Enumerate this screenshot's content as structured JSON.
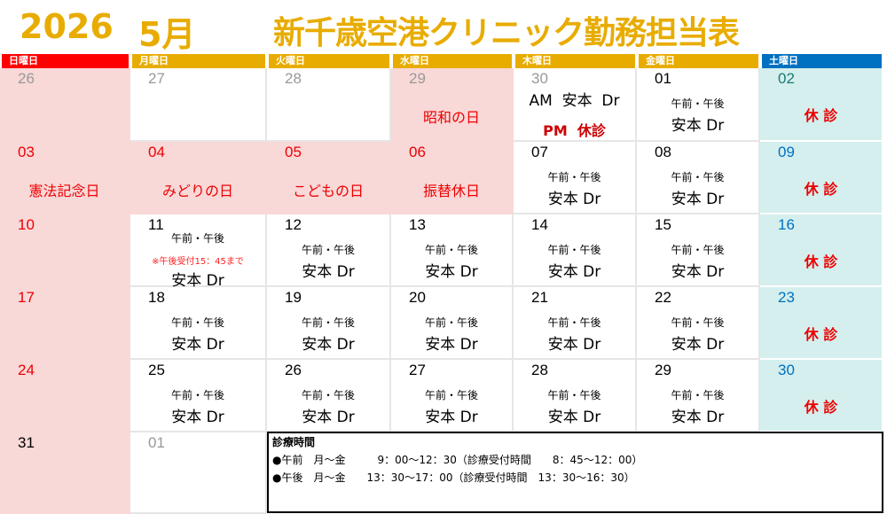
{
  "header": {
    "year": "2026",
    "month": "5月",
    "title": "新千歳空港クリニック勤務担当表"
  },
  "colors": {
    "gold": "#E8AC00",
    "sunday": "#FF0000",
    "saturday": "#0070C0",
    "holiday_bg": "#F9D8D8",
    "saturday_bg": "#D4EFEE",
    "holiday_text": "#EE0000"
  },
  "weekdays": [
    "日曜日",
    "月曜日",
    "火曜日",
    "水曜日",
    "木曜日",
    "金曜日",
    "土曜日"
  ],
  "weeks": [
    [
      {
        "day": "26",
        "dc": "gray",
        "bg": "pink"
      },
      {
        "day": "27",
        "dc": "gray"
      },
      {
        "day": "28",
        "dc": "gray"
      },
      {
        "day": "29",
        "dc": "gray",
        "bg": "pink",
        "holiday": "昭和の日"
      },
      {
        "day": "30",
        "dc": "gray",
        "am": "AM  安本  Dr",
        "pm": "PM  休診"
      },
      {
        "day": "01",
        "dc": "black",
        "sub": "午前・午後",
        "name": "安本 Dr"
      },
      {
        "day": "02",
        "dc": "teal",
        "bg": "teal",
        "closed": "休 診"
      }
    ],
    [
      {
        "day": "03",
        "dc": "red",
        "bg": "pink",
        "holiday": "憲法記念日"
      },
      {
        "day": "04",
        "dc": "red",
        "bg": "pink",
        "holiday": "みどりの日"
      },
      {
        "day": "05",
        "dc": "red",
        "bg": "pink",
        "holiday": "こどもの日"
      },
      {
        "day": "06",
        "dc": "red",
        "bg": "pink",
        "holiday": "振替休日"
      },
      {
        "day": "07",
        "dc": "black",
        "sub": "午前・午後",
        "name": "安本 Dr"
      },
      {
        "day": "08",
        "dc": "black",
        "sub": "午前・午後",
        "name": "安本 Dr"
      },
      {
        "day": "09",
        "dc": "blue",
        "bg": "teal",
        "closed": "休 診"
      }
    ],
    [
      {
        "day": "10",
        "dc": "red",
        "bg": "pink"
      },
      {
        "day": "11",
        "dc": "black",
        "sub": "午前・午後",
        "note": "※午後受付15：45まで",
        "name": "安本 Dr"
      },
      {
        "day": "12",
        "dc": "black",
        "sub": "午前・午後",
        "name": "安本 Dr"
      },
      {
        "day": "13",
        "dc": "black",
        "sub": "午前・午後",
        "name": "安本 Dr"
      },
      {
        "day": "14",
        "dc": "black",
        "sub": "午前・午後",
        "name": "安本 Dr"
      },
      {
        "day": "15",
        "dc": "black",
        "sub": "午前・午後",
        "name": "安本 Dr"
      },
      {
        "day": "16",
        "dc": "blue",
        "bg": "teal",
        "closed": "休 診"
      }
    ],
    [
      {
        "day": "17",
        "dc": "red",
        "bg": "pink"
      },
      {
        "day": "18",
        "dc": "black",
        "sub": "午前・午後",
        "name": "安本 Dr"
      },
      {
        "day": "19",
        "dc": "black",
        "sub": "午前・午後",
        "name": "安本 Dr"
      },
      {
        "day": "20",
        "dc": "black",
        "sub": "午前・午後",
        "name": "安本 Dr"
      },
      {
        "day": "21",
        "dc": "black",
        "sub": "午前・午後",
        "name": "安本 Dr"
      },
      {
        "day": "22",
        "dc": "black",
        "sub": "午前・午後",
        "name": "安本 Dr"
      },
      {
        "day": "23",
        "dc": "blue",
        "bg": "teal",
        "closed": "休 診"
      }
    ],
    [
      {
        "day": "24",
        "dc": "red",
        "bg": "pink"
      },
      {
        "day": "25",
        "dc": "black",
        "sub": "午前・午後",
        "name": "安本 Dr"
      },
      {
        "day": "26",
        "dc": "black",
        "sub": "午前・午後",
        "name": "安本 Dr"
      },
      {
        "day": "27",
        "dc": "black",
        "sub": "午前・午後",
        "name": "安本 Dr"
      },
      {
        "day": "28",
        "dc": "black",
        "sub": "午前・午後",
        "name": "安本 Dr"
      },
      {
        "day": "29",
        "dc": "black",
        "sub": "午前・午後",
        "name": "安本 Dr"
      },
      {
        "day": "30",
        "dc": "blue",
        "bg": "teal",
        "closed": "休 診"
      }
    ],
    [
      {
        "day": "31",
        "dc": "black",
        "bg": "pink"
      },
      {
        "day": "01",
        "dc": "gray"
      }
    ]
  ],
  "hours": {
    "title": "診療時間",
    "rows": [
      "●午前　月～金　　　9：00～12：30（診療受付時間　　8：45～12：00）",
      "●午後　月～金　　13：30～17：00（診療受付時間　13：30～16：30）"
    ]
  }
}
